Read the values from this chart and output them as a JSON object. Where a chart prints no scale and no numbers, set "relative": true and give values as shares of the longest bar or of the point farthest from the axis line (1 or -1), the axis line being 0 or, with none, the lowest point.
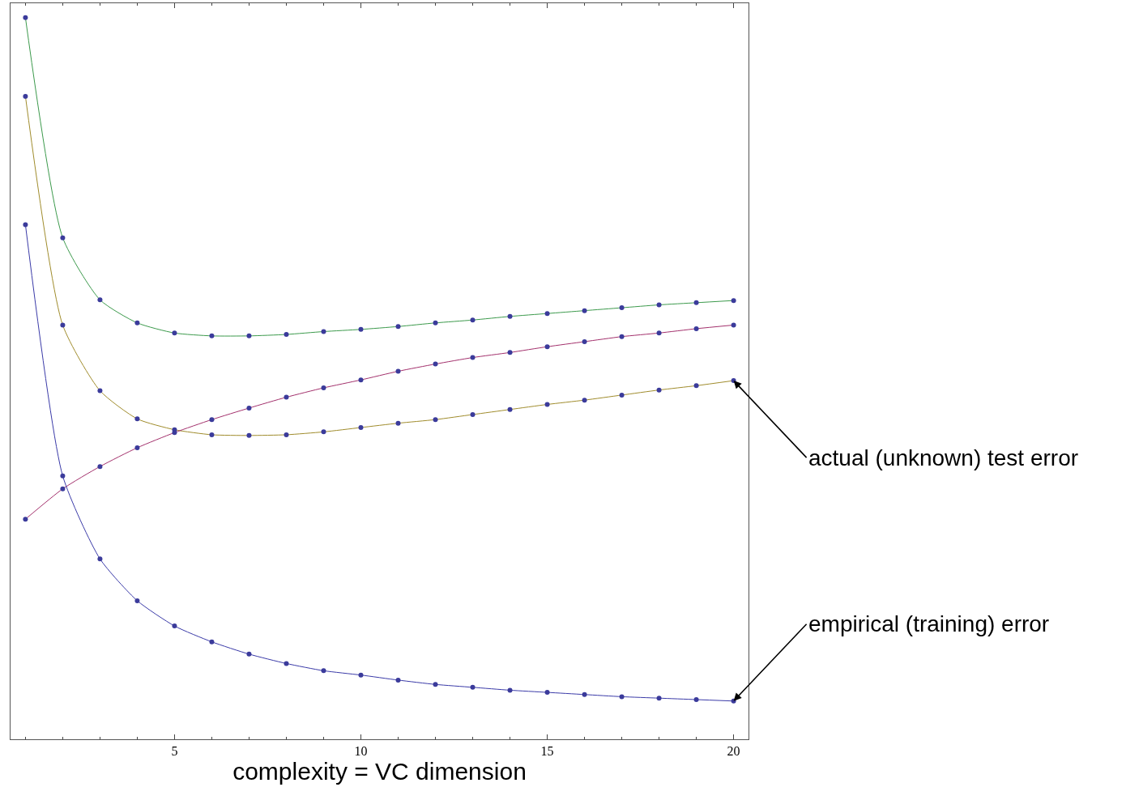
{
  "chart_data": {
    "type": "line",
    "relative": true,
    "xlabel": "complexity = VC dimension",
    "x": [
      1,
      2,
      3,
      4,
      5,
      6,
      7,
      8,
      9,
      10,
      11,
      12,
      13,
      14,
      15,
      16,
      17,
      18,
      19,
      20
    ],
    "xlim": [
      0.6,
      20.4
    ],
    "xticks": [
      5,
      10,
      15,
      20
    ],
    "marker": "circle",
    "line_style": "solid",
    "series": [
      {
        "color": "#3c9a4c",
        "values": [
          1.0,
          0.695,
          0.609,
          0.577,
          0.563,
          0.559,
          0.559,
          0.561,
          0.565,
          0.568,
          0.572,
          0.577,
          0.581,
          0.586,
          0.59,
          0.594,
          0.598,
          0.602,
          0.605,
          0.608
        ]
      },
      {
        "color": "#a08c2c",
        "values": [
          0.891,
          0.574,
          0.483,
          0.444,
          0.429,
          0.422,
          0.421,
          0.422,
          0.426,
          0.432,
          0.438,
          0.443,
          0.45,
          0.457,
          0.464,
          0.47,
          0.477,
          0.484,
          0.49,
          0.497
        ]
      },
      {
        "color": "#a3306c",
        "values": [
          0.305,
          0.347,
          0.378,
          0.404,
          0.425,
          0.443,
          0.459,
          0.474,
          0.487,
          0.498,
          0.51,
          0.52,
          0.529,
          0.536,
          0.544,
          0.551,
          0.558,
          0.563,
          0.569,
          0.574
        ]
      },
      {
        "color": "#3a3aa8",
        "values": [
          0.713,
          0.365,
          0.25,
          0.192,
          0.157,
          0.135,
          0.118,
          0.105,
          0.095,
          0.089,
          0.082,
          0.076,
          0.072,
          0.068,
          0.065,
          0.062,
          0.059,
          0.057,
          0.055,
          0.053
        ]
      }
    ],
    "annotations": [
      {
        "text": "actual (unknown) test error",
        "x": 20,
        "y": 0.497
      },
      {
        "text": "empirical (training) error",
        "x": 20,
        "y": 0.053
      }
    ]
  }
}
